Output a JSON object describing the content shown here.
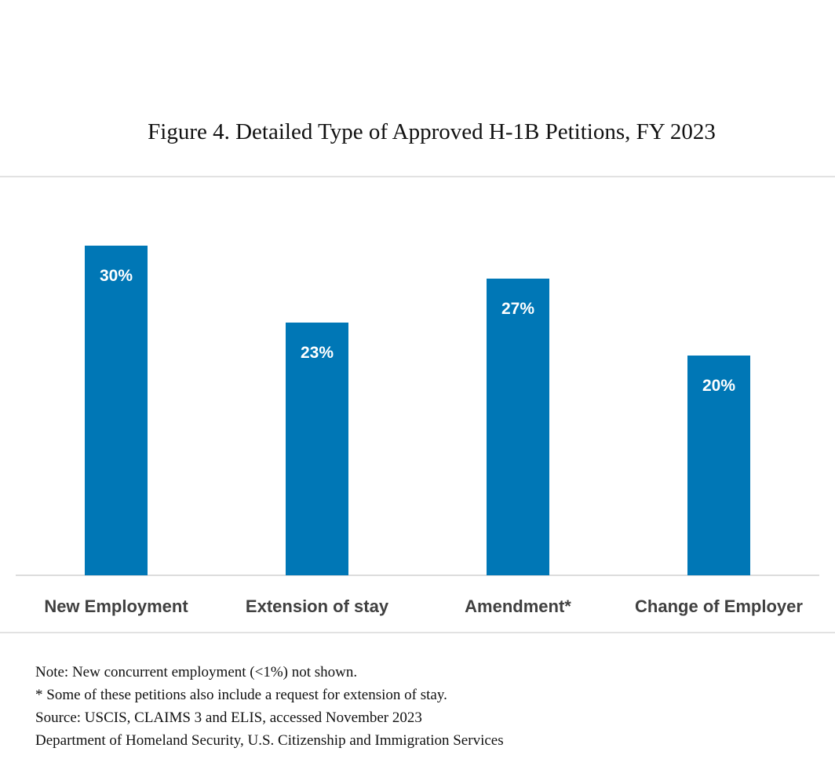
{
  "figure": {
    "title": "Figure 4. Detailed Type of Approved H-1B Petitions, FY 2023"
  },
  "colors": {
    "bar": "#0077b6",
    "bar_label": "#ffffff",
    "category_label": "#404040",
    "rule": "#d9d9d9",
    "axis": "#d0d0d0"
  },
  "chart_data": {
    "type": "bar",
    "title": "Figure 4. Detailed Type of Approved H-1B Petitions, FY 2023",
    "categories": [
      "New Employment",
      "Extension of stay",
      "Amendment*",
      "Change of Employer"
    ],
    "values": [
      30,
      23,
      27,
      20
    ],
    "data_labels": [
      "30%",
      "23%",
      "27%",
      "20%"
    ],
    "xlabel": "",
    "ylabel": "",
    "ylim": [
      0,
      30
    ],
    "grid": false,
    "legend": "none"
  },
  "notes": [
    "Note: New concurrent employment (<1%) not shown.",
    "* Some of these petitions also include a request for extension of stay.",
    "Source: USCIS, CLAIMS 3 and ELIS, accessed November 2023",
    "Department of Homeland Security, U.S. Citizenship and Immigration Services"
  ]
}
